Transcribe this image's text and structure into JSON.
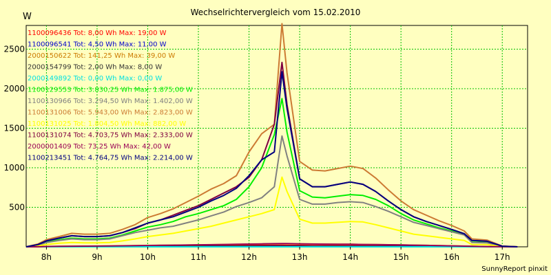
{
  "chart_data": {
    "type": "line",
    "title": "Wechselrichtervergleich vom 15.02.2010",
    "ylabel": "W",
    "credit": "SunnyReport pinxit",
    "ylim": [
      0,
      2800
    ],
    "xlim": [
      7.6,
      17.5
    ],
    "yticks": [
      500,
      1000,
      1500,
      2000,
      2500
    ],
    "xticks": [
      {
        "value": 8,
        "label": "8h"
      },
      {
        "value": 9,
        "label": "9h"
      },
      {
        "value": 10,
        "label": "10h"
      },
      {
        "value": 11,
        "label": "11h"
      },
      {
        "value": 12,
        "label": "12h"
      },
      {
        "value": 13,
        "label": "13h"
      },
      {
        "value": 14,
        "label": "14h"
      },
      {
        "value": 15,
        "label": "15h"
      },
      {
        "value": 16,
        "label": "16h"
      },
      {
        "value": 17,
        "label": "17h"
      }
    ],
    "grid": true,
    "legend_position": "top-left",
    "x": [
      7.6,
      7.83,
      8.0,
      8.25,
      8.5,
      8.75,
      9.0,
      9.25,
      9.5,
      9.75,
      10.0,
      10.25,
      10.5,
      10.75,
      11.0,
      11.25,
      11.5,
      11.75,
      12.0,
      12.25,
      12.5,
      12.65,
      12.75,
      13.0,
      13.25,
      13.5,
      13.75,
      14.0,
      14.25,
      14.5,
      14.75,
      15.0,
      15.25,
      15.5,
      15.75,
      16.0,
      16.25,
      16.4,
      16.7,
      17.0,
      17.3
    ],
    "series": [
      {
        "name": "1100096436 Tot: 8,00 Wh Max: 19,00 W",
        "color": "#ff0000",
        "values": [
          0,
          0,
          2,
          3,
          4,
          5,
          6,
          7,
          8,
          9,
          10,
          11,
          12,
          13,
          14,
          15,
          16,
          17,
          18,
          18,
          19,
          19,
          18,
          17,
          16,
          15,
          14,
          13,
          12,
          11,
          10,
          9,
          8,
          7,
          5,
          4,
          3,
          2,
          1,
          0,
          0
        ]
      },
      {
        "name": "1100096541 Tot: 4,50 Wh Max: 11,00 W",
        "color": "#0000cc",
        "values": [
          0,
          0,
          1,
          1,
          2,
          2,
          3,
          3,
          4,
          4,
          5,
          5,
          6,
          7,
          7,
          8,
          8,
          9,
          10,
          10,
          11,
          11,
          10,
          10,
          9,
          9,
          8,
          8,
          7,
          6,
          6,
          5,
          5,
          4,
          3,
          2,
          2,
          1,
          1,
          0,
          0
        ]
      },
      {
        "name": "2000150622 Tot: 141,25 Wh Max: 39,00 W",
        "color": "#cc7a00",
        "values": [
          0,
          0,
          3,
          5,
          7,
          8,
          9,
          10,
          12,
          14,
          16,
          18,
          20,
          22,
          24,
          26,
          28,
          30,
          33,
          35,
          37,
          39,
          38,
          36,
          35,
          34,
          33,
          32,
          30,
          28,
          26,
          24,
          21,
          18,
          15,
          12,
          9,
          6,
          3,
          1,
          0
        ]
      },
      {
        "name": "2000154799 Tot: 2,00 Wh Max: 8,00 W",
        "color": "#333333",
        "values": [
          0,
          0,
          0,
          1,
          1,
          1,
          2,
          2,
          2,
          3,
          3,
          3,
          4,
          4,
          5,
          5,
          5,
          6,
          6,
          7,
          7,
          8,
          7,
          7,
          6,
          6,
          6,
          5,
          5,
          4,
          4,
          3,
          3,
          2,
          2,
          1,
          1,
          1,
          0,
          0,
          0
        ]
      },
      {
        "name": "2000149892 Tot: 0,00 Wh Max: 0,00 W",
        "color": "#00e0e0",
        "values": [
          0,
          0,
          0,
          0,
          0,
          0,
          0,
          0,
          0,
          0,
          0,
          0,
          0,
          0,
          0,
          0,
          0,
          0,
          0,
          0,
          0,
          0,
          0,
          0,
          0,
          0,
          0,
          0,
          0,
          0,
          0,
          0,
          0,
          0,
          0,
          0,
          0,
          0,
          0,
          0,
          0
        ]
      },
      {
        "name": "1100129553 Tot: 3.830,25 Wh Max: 1.875,00 W",
        "color": "#00ee00",
        "values": [
          0,
          20,
          60,
          90,
          110,
          100,
          100,
          110,
          150,
          200,
          250,
          280,
          320,
          380,
          420,
          470,
          520,
          600,
          760,
          1000,
          1420,
          1875,
          1450,
          710,
          630,
          620,
          640,
          660,
          650,
          600,
          520,
          420,
          340,
          290,
          240,
          200,
          160,
          60,
          55,
          5,
          0
        ]
      },
      {
        "name": "1100130966 Tot: 3.294,50 Wh Max: 1.402,00 W",
        "color": "#808080",
        "values": [
          0,
          15,
          55,
          80,
          100,
          90,
          90,
          100,
          140,
          180,
          210,
          240,
          260,
          300,
          340,
          390,
          440,
          510,
          560,
          620,
          760,
          1402,
          1150,
          600,
          540,
          540,
          560,
          570,
          560,
          510,
          450,
          380,
          310,
          270,
          230,
          190,
          150,
          55,
          50,
          5,
          0
        ]
      },
      {
        "name": "1100131006 Tot: 5.943,00 Wh Max: 2.823,00 W",
        "color": "#cc7a33",
        "values": [
          0,
          35,
          90,
          130,
          170,
          160,
          160,
          170,
          220,
          280,
          370,
          420,
          480,
          560,
          640,
          730,
          800,
          900,
          1200,
          1430,
          1550,
          2823,
          2200,
          1080,
          970,
          960,
          990,
          1020,
          990,
          870,
          720,
          580,
          470,
          400,
          330,
          270,
          200,
          100,
          85,
          10,
          0
        ]
      },
      {
        "name": "1100131025 Tot: 1.804,50 Wh Max: 882,00 W",
        "color": "#ffff00",
        "values": [
          0,
          10,
          30,
          45,
          55,
          50,
          50,
          55,
          75,
          100,
          130,
          150,
          170,
          200,
          230,
          260,
          300,
          340,
          380,
          420,
          470,
          882,
          700,
          350,
          300,
          300,
          310,
          320,
          315,
          280,
          240,
          200,
          160,
          140,
          120,
          100,
          80,
          30,
          28,
          3,
          0
        ]
      },
      {
        "name": "1100131074 Tot: 4.703,75 Wh Max: 2.333,00 W",
        "color": "#800040",
        "values": [
          0,
          28,
          75,
          110,
          140,
          130,
          130,
          140,
          180,
          230,
          300,
          340,
          400,
          460,
          520,
          600,
          680,
          760,
          880,
          1100,
          1550,
          2333,
          1800,
          860,
          760,
          760,
          790,
          820,
          790,
          700,
          580,
          470,
          380,
          320,
          270,
          220,
          165,
          80,
          70,
          8,
          0
        ]
      },
      {
        "name": "2000001409 Tot: 73,25 Wh Max: 42,00 W",
        "color": "#990055",
        "values": [
          0,
          0,
          4,
          6,
          8,
          9,
          10,
          11,
          13,
          15,
          17,
          19,
          21,
          23,
          25,
          27,
          30,
          32,
          35,
          37,
          40,
          42,
          41,
          38,
          36,
          34,
          33,
          32,
          30,
          28,
          26,
          24,
          21,
          18,
          15,
          12,
          9,
          6,
          3,
          1,
          0
        ]
      },
      {
        "name": "1100213451 Tot: 4.764,75 Wh Max: 2.214,00 W",
        "color": "#000080",
        "values": [
          0,
          28,
          75,
          110,
          140,
          130,
          130,
          140,
          180,
          240,
          300,
          340,
          380,
          440,
          500,
          580,
          650,
          740,
          900,
          1100,
          1200,
          2214,
          1750,
          860,
          760,
          760,
          790,
          820,
          790,
          700,
          580,
          470,
          380,
          320,
          270,
          220,
          165,
          80,
          70,
          8,
          0
        ]
      }
    ]
  }
}
